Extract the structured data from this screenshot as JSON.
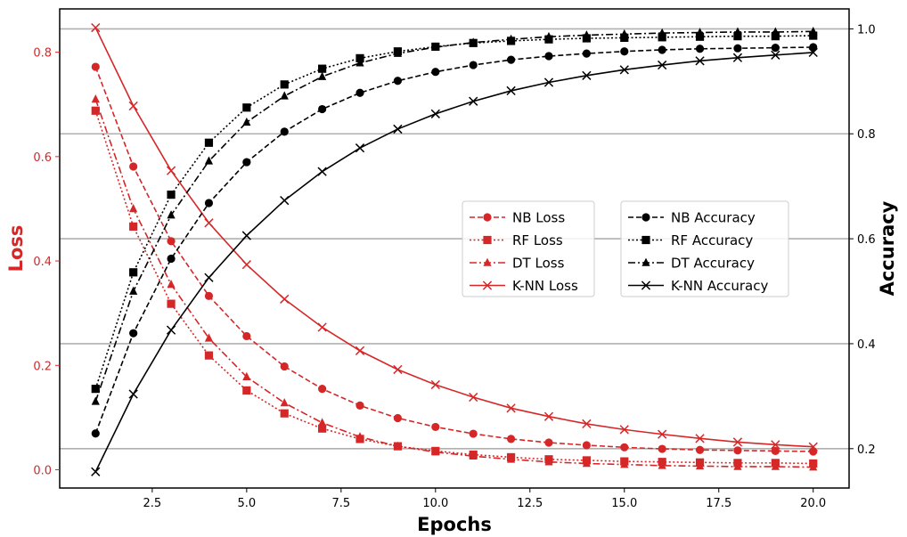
{
  "chart_data": {
    "type": "line",
    "xlabel": "Epochs",
    "ylabel_left": "Loss",
    "ylabel_right": "Accuracy",
    "xlim": [
      0.05,
      20.95
    ],
    "ylim_left": [
      -0.035,
      0.883
    ],
    "ylim_right": [
      0.125,
      1.038
    ],
    "xticks": [
      2.5,
      5.0,
      7.5,
      10.0,
      12.5,
      15.0,
      17.5,
      20.0
    ],
    "xtick_labels": [
      "2.5",
      "5.0",
      "7.5",
      "10.0",
      "12.5",
      "15.0",
      "17.5",
      "20.0"
    ],
    "yticks_left": [
      0.0,
      0.2,
      0.4,
      0.6,
      0.8
    ],
    "ytick_labels_left": [
      "0.0",
      "0.2",
      "0.4",
      "0.6",
      "0.8"
    ],
    "yticks_right": [
      0.2,
      0.4,
      0.6,
      0.8,
      1.0
    ],
    "ytick_labels_right": [
      "0.2",
      "0.4",
      "0.6",
      "0.8",
      "1.0"
    ],
    "grid": "horizontal lines at right-axis ticks",
    "x": [
      1,
      2,
      3,
      4,
      5,
      6,
      7,
      8,
      9,
      10,
      11,
      12,
      13,
      14,
      15,
      16,
      17,
      18,
      19,
      20
    ],
    "loss_series": [
      {
        "name": "NB Loss",
        "color": "#d62728",
        "dash": "dashed",
        "marker": "circle",
        "values": [
          0.772,
          0.581,
          0.438,
          0.333,
          0.256,
          0.198,
          0.155,
          0.123,
          0.099,
          0.082,
          0.069,
          0.059,
          0.052,
          0.047,
          0.043,
          0.04,
          0.038,
          0.037,
          0.036,
          0.035
        ]
      },
      {
        "name": "RF Loss",
        "color": "#d62728",
        "dash": "dotted",
        "marker": "square",
        "values": [
          0.688,
          0.466,
          0.318,
          0.219,
          0.152,
          0.108,
          0.079,
          0.059,
          0.045,
          0.036,
          0.029,
          0.024,
          0.02,
          0.018,
          0.016,
          0.015,
          0.014,
          0.013,
          0.013,
          0.012
        ]
      },
      {
        "name": "DT Loss",
        "color": "#d62728",
        "dash": "dashdot",
        "marker": "triangle",
        "values": [
          0.71,
          0.5,
          0.355,
          0.252,
          0.178,
          0.128,
          0.09,
          0.063,
          0.045,
          0.034,
          0.026,
          0.02,
          0.015,
          0.012,
          0.01,
          0.008,
          0.007,
          0.006,
          0.006,
          0.005
        ]
      },
      {
        "name": "K-NN Loss",
        "color": "#d62728",
        "dash": "solid",
        "marker": "x",
        "values": [
          0.847,
          0.697,
          0.573,
          0.473,
          0.393,
          0.327,
          0.273,
          0.228,
          0.192,
          0.163,
          0.139,
          0.118,
          0.102,
          0.088,
          0.077,
          0.068,
          0.06,
          0.053,
          0.048,
          0.044
        ]
      }
    ],
    "accuracy_series": [
      {
        "name": "NB Accuracy",
        "color": "#000000",
        "dash": "dashed",
        "marker": "circle",
        "values": [
          0.229,
          0.42,
          0.562,
          0.668,
          0.746,
          0.804,
          0.847,
          0.878,
          0.901,
          0.918,
          0.931,
          0.941,
          0.948,
          0.953,
          0.957,
          0.96,
          0.962,
          0.963,
          0.964,
          0.965
        ]
      },
      {
        "name": "RF Accuracy",
        "color": "#000000",
        "dash": "dotted",
        "marker": "square",
        "values": [
          0.314,
          0.536,
          0.684,
          0.783,
          0.85,
          0.894,
          0.924,
          0.944,
          0.957,
          0.966,
          0.973,
          0.977,
          0.98,
          0.982,
          0.983,
          0.984,
          0.985,
          0.986,
          0.986,
          0.987
        ]
      },
      {
        "name": "DT Accuracy",
        "color": "#000000",
        "dash": "dashdot",
        "marker": "triangle",
        "values": [
          0.29,
          0.5,
          0.645,
          0.748,
          0.822,
          0.872,
          0.909,
          0.935,
          0.953,
          0.965,
          0.974,
          0.98,
          0.985,
          0.988,
          0.99,
          0.992,
          0.993,
          0.994,
          0.994,
          0.995
        ]
      },
      {
        "name": "K-NN Accuracy",
        "color": "#000000",
        "dash": "solid",
        "marker": "x",
        "values": [
          0.156,
          0.304,
          0.426,
          0.526,
          0.606,
          0.673,
          0.728,
          0.773,
          0.809,
          0.838,
          0.862,
          0.882,
          0.898,
          0.911,
          0.922,
          0.931,
          0.939,
          0.945,
          0.95,
          0.955
        ]
      }
    ]
  }
}
